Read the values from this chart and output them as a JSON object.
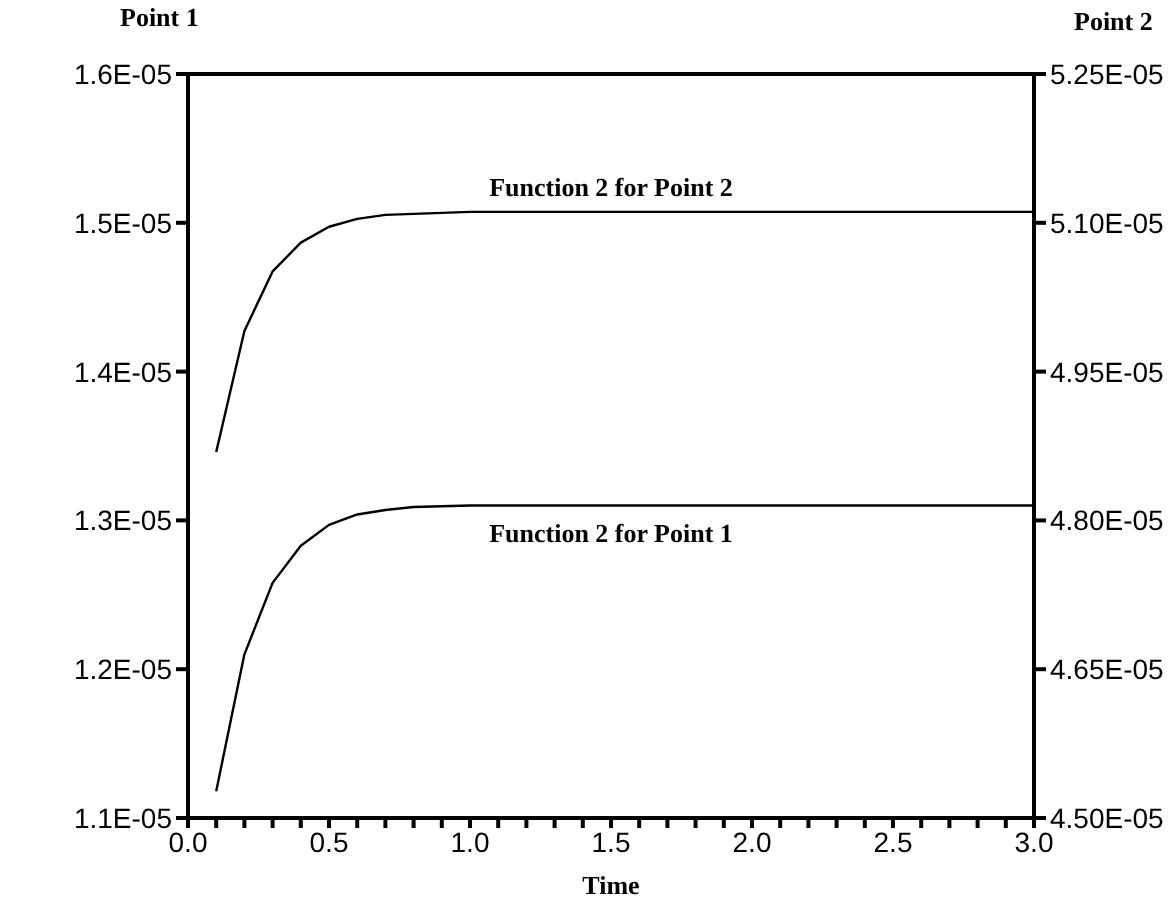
{
  "chart_data": {
    "type": "line",
    "xlabel": "Time",
    "ylabel": "Point 1",
    "y2label": "Point 2",
    "x": [
      0.1,
      0.2,
      0.3,
      0.4,
      0.5,
      0.6,
      0.7,
      0.8,
      1.0,
      1.5,
      2.0,
      2.5,
      3.0
    ],
    "series": [
      {
        "name": "Function 2 for Point 1",
        "color": "#000000",
        "axis": "y",
        "values": [
          1.118e-05,
          1.21e-05,
          1.258e-05,
          1.283e-05,
          1.297e-05,
          1.304e-05,
          1.307e-05,
          1.309e-05,
          1.31e-05,
          1.31e-05,
          1.31e-05,
          1.31e-05,
          1.31e-05
        ]
      },
      {
        "name": "Function 2 for Point 2",
        "color": "#000000",
        "axis": "y2",
        "values": [
          4.869e-05,
          4.991e-05,
          5.051e-05,
          5.08e-05,
          5.096e-05,
          5.104e-05,
          5.108e-05,
          5.109e-05,
          5.111e-05,
          5.111e-05,
          5.111e-05,
          5.111e-05,
          5.111e-05
        ]
      }
    ],
    "xlim": [
      0,
      3
    ],
    "xticks": [
      {
        "value": 0,
        "label": "0.0"
      },
      {
        "value": 0.1,
        "label": null
      },
      {
        "value": 0.2,
        "label": null
      },
      {
        "value": 0.3,
        "label": null
      },
      {
        "value": 0.4,
        "label": null
      },
      {
        "value": 0.5,
        "label": "0.5"
      },
      {
        "value": 0.6,
        "label": null
      },
      {
        "value": 0.7,
        "label": null
      },
      {
        "value": 0.8,
        "label": null
      },
      {
        "value": 0.9,
        "label": null
      },
      {
        "value": 1,
        "label": "1.0"
      },
      {
        "value": 1.1,
        "label": null
      },
      {
        "value": 1.2,
        "label": null
      },
      {
        "value": 1.3,
        "label": null
      },
      {
        "value": 1.4,
        "label": null
      },
      {
        "value": 1.5,
        "label": "1.5"
      },
      {
        "value": 1.6,
        "label": null
      },
      {
        "value": 1.7,
        "label": null
      },
      {
        "value": 1.8,
        "label": null
      },
      {
        "value": 1.9,
        "label": null
      },
      {
        "value": 2,
        "label": "2.0"
      },
      {
        "value": 2.1,
        "label": null
      },
      {
        "value": 2.2,
        "label": null
      },
      {
        "value": 2.3,
        "label": null
      },
      {
        "value": 2.4,
        "label": null
      },
      {
        "value": 2.5,
        "label": "2.5"
      },
      {
        "value": 2.6,
        "label": null
      },
      {
        "value": 2.7,
        "label": null
      },
      {
        "value": 2.8,
        "label": null
      },
      {
        "value": 2.9,
        "label": null
      },
      {
        "value": 3,
        "label": "3.0"
      }
    ],
    "ylim": [
      1.1e-05,
      1.6e-05
    ],
    "yticks": [
      {
        "value": 1.1e-05,
        "label": "1.1E-05"
      },
      {
        "value": 1.2e-05,
        "label": "1.2E-05"
      },
      {
        "value": 1.3e-05,
        "label": "1.3E-05"
      },
      {
        "value": 1.4e-05,
        "label": "1.4E-05"
      },
      {
        "value": 1.5e-05,
        "label": "1.5E-05"
      },
      {
        "value": 1.6e-05,
        "label": "1.6E-05"
      }
    ],
    "y2lim": [
      4.5e-05,
      5.25e-05
    ],
    "y2ticks": [
      {
        "value": 4.5e-05,
        "label": "4.50E-05"
      },
      {
        "value": 4.65e-05,
        "label": "4.65E-05"
      },
      {
        "value": 4.8e-05,
        "label": "4.80E-05"
      },
      {
        "value": 4.95e-05,
        "label": "4.95E-05"
      },
      {
        "value": 5.1e-05,
        "label": "5.10E-05"
      },
      {
        "value": 5.25e-05,
        "label": "5.25E-05"
      }
    ],
    "grid": false,
    "legend": false,
    "marker": "none",
    "line_style": "solid"
  }
}
